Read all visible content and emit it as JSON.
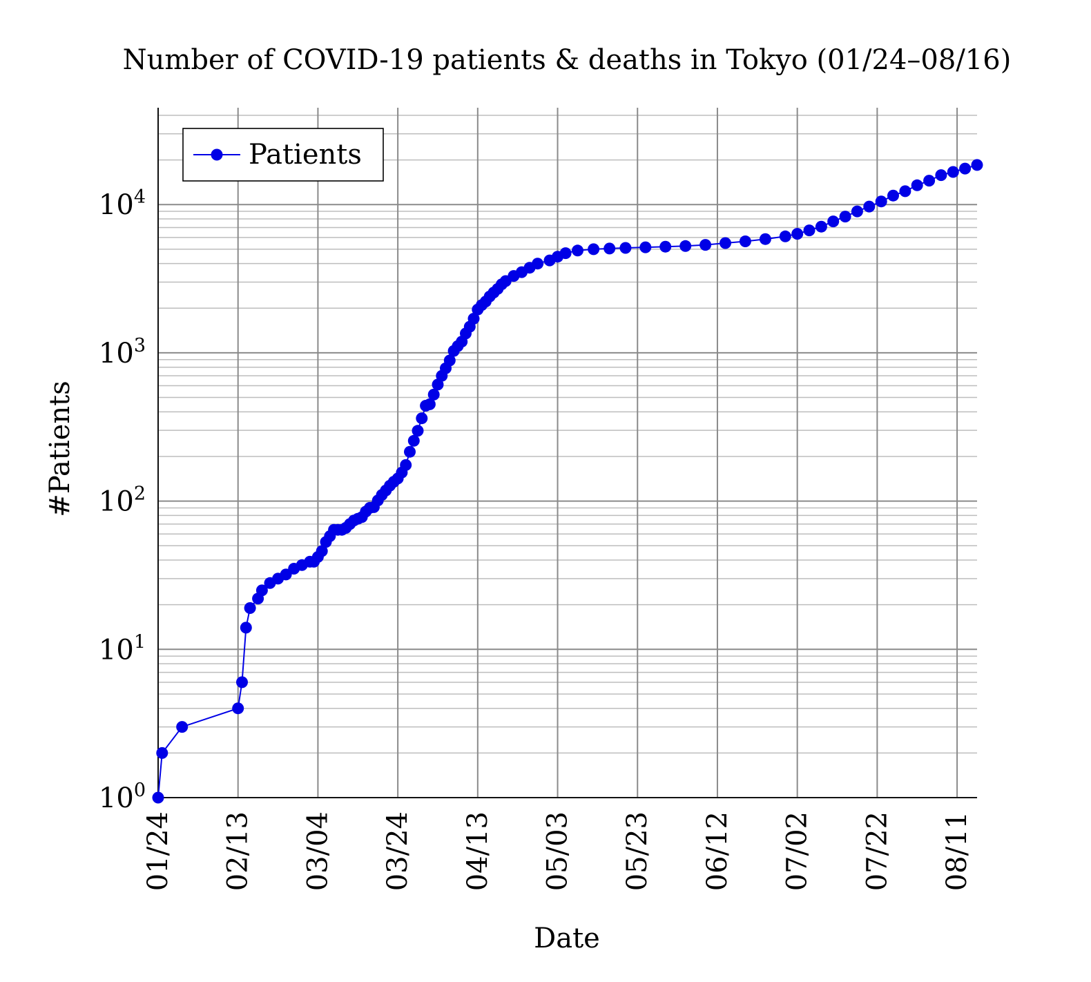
{
  "chart_data": {
    "type": "line",
    "title": "Number of COVID-19 patients & deaths in Tokyo (01/24–08/16)",
    "xlabel": "Date",
    "ylabel": "#Patients",
    "y_scale": "log",
    "ylim": [
      1,
      45000
    ],
    "xlim": [
      "2020-01-24",
      "2020-08-16"
    ],
    "grid": true,
    "legend_position": "top-left",
    "x_ticks": [
      "01/24",
      "02/13",
      "03/04",
      "03/24",
      "04/13",
      "05/03",
      "05/23",
      "06/12",
      "07/02",
      "07/22",
      "08/11"
    ],
    "y_ticks": [
      {
        "base": "10",
        "exp": "0",
        "value": 1
      },
      {
        "base": "10",
        "exp": "1",
        "value": 10
      },
      {
        "base": "10",
        "exp": "2",
        "value": 100
      },
      {
        "base": "10",
        "exp": "3",
        "value": 1000
      },
      {
        "base": "10",
        "exp": "4",
        "value": 10000
      }
    ],
    "series": [
      {
        "name": "Patients",
        "color": "#0000e6",
        "marker": "circle",
        "points": [
          [
            "2020-01-24",
            1
          ],
          [
            "2020-01-25",
            2
          ],
          [
            "2020-01-30",
            3
          ],
          [
            "2020-02-13",
            4
          ],
          [
            "2020-02-14",
            6
          ],
          [
            "2020-02-15",
            14
          ],
          [
            "2020-02-16",
            19
          ],
          [
            "2020-02-18",
            22
          ],
          [
            "2020-02-19",
            25
          ],
          [
            "2020-02-21",
            28
          ],
          [
            "2020-02-23",
            30
          ],
          [
            "2020-02-25",
            32
          ],
          [
            "2020-02-27",
            35
          ],
          [
            "2020-02-29",
            37
          ],
          [
            "2020-03-02",
            39
          ],
          [
            "2020-03-03",
            39
          ],
          [
            "2020-03-04",
            42
          ],
          [
            "2020-03-05",
            46
          ],
          [
            "2020-03-06",
            53
          ],
          [
            "2020-03-07",
            58
          ],
          [
            "2020-03-08",
            64
          ],
          [
            "2020-03-09",
            64
          ],
          [
            "2020-03-10",
            64
          ],
          [
            "2020-03-11",
            66
          ],
          [
            "2020-03-12",
            70
          ],
          [
            "2020-03-13",
            74
          ],
          [
            "2020-03-14",
            76
          ],
          [
            "2020-03-15",
            78
          ],
          [
            "2020-03-16",
            85
          ],
          [
            "2020-03-17",
            90
          ],
          [
            "2020-03-18",
            91
          ],
          [
            "2020-03-19",
            101
          ],
          [
            "2020-03-20",
            110
          ],
          [
            "2020-03-21",
            118
          ],
          [
            "2020-03-22",
            127
          ],
          [
            "2020-03-23",
            135
          ],
          [
            "2020-03-24",
            142
          ],
          [
            "2020-03-25",
            156
          ],
          [
            "2020-03-26",
            175
          ],
          [
            "2020-03-27",
            215
          ],
          [
            "2020-03-28",
            255
          ],
          [
            "2020-03-29",
            298
          ],
          [
            "2020-03-30",
            362
          ],
          [
            "2020-03-31",
            440
          ],
          [
            "2020-04-01",
            450
          ],
          [
            "2020-04-02",
            523
          ],
          [
            "2020-04-03",
            611
          ],
          [
            "2020-04-04",
            700
          ],
          [
            "2020-04-05",
            787
          ],
          [
            "2020-04-06",
            888
          ],
          [
            "2020-04-07",
            1030
          ],
          [
            "2020-04-08",
            1110
          ],
          [
            "2020-04-09",
            1190
          ],
          [
            "2020-04-10",
            1350
          ],
          [
            "2020-04-11",
            1500
          ],
          [
            "2020-04-12",
            1700
          ],
          [
            "2020-04-13",
            1960
          ],
          [
            "2020-04-14",
            2100
          ],
          [
            "2020-04-15",
            2220
          ],
          [
            "2020-04-16",
            2400
          ],
          [
            "2020-04-17",
            2550
          ],
          [
            "2020-04-18",
            2700
          ],
          [
            "2020-04-19",
            2900
          ],
          [
            "2020-04-20",
            3050
          ],
          [
            "2020-04-22",
            3300
          ],
          [
            "2020-04-24",
            3500
          ],
          [
            "2020-04-26",
            3750
          ],
          [
            "2020-04-28",
            4000
          ],
          [
            "2020-05-01",
            4200
          ],
          [
            "2020-05-03",
            4450
          ],
          [
            "2020-05-05",
            4700
          ],
          [
            "2020-05-08",
            4900
          ],
          [
            "2020-05-12",
            5000
          ],
          [
            "2020-05-16",
            5050
          ],
          [
            "2020-05-20",
            5100
          ],
          [
            "2020-05-25",
            5150
          ],
          [
            "2020-05-30",
            5200
          ],
          [
            "2020-06-04",
            5250
          ],
          [
            "2020-06-09",
            5350
          ],
          [
            "2020-06-14",
            5500
          ],
          [
            "2020-06-19",
            5650
          ],
          [
            "2020-06-24",
            5850
          ],
          [
            "2020-06-29",
            6100
          ],
          [
            "2020-07-02",
            6350
          ],
          [
            "2020-07-05",
            6700
          ],
          [
            "2020-07-08",
            7100
          ],
          [
            "2020-07-11",
            7700
          ],
          [
            "2020-07-14",
            8300
          ],
          [
            "2020-07-17",
            9000
          ],
          [
            "2020-07-20",
            9700
          ],
          [
            "2020-07-23",
            10500
          ],
          [
            "2020-07-26",
            11500
          ],
          [
            "2020-07-29",
            12300
          ],
          [
            "2020-08-01",
            13500
          ],
          [
            "2020-08-04",
            14500
          ],
          [
            "2020-08-07",
            15800
          ],
          [
            "2020-08-10",
            16600
          ],
          [
            "2020-08-13",
            17500
          ],
          [
            "2020-08-16",
            18500
          ]
        ]
      }
    ]
  }
}
